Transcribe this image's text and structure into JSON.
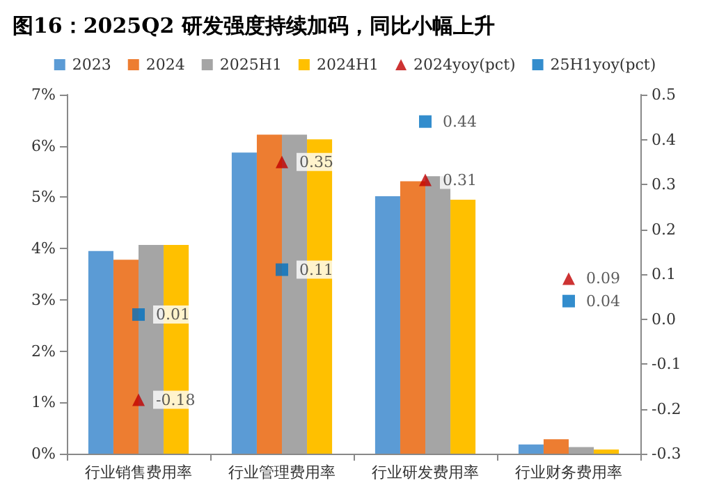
{
  "chart_data": {
    "type": "bar",
    "title": "图16：2025Q2 研发强度持续加码，同比小幅上升",
    "categories": [
      "行业销售费用率",
      "行业管理费用率",
      "行业研发费用率",
      "行业财务费用率"
    ],
    "series": [
      {
        "name": "2023",
        "color": "#5b9bd5",
        "values": [
          3.95,
          5.87,
          5.02,
          0.18
        ]
      },
      {
        "name": "2024",
        "color": "#ed7d31",
        "values": [
          3.78,
          6.22,
          5.31,
          0.28
        ]
      },
      {
        "name": "2025H1",
        "color": "#a5a5a5",
        "values": [
          4.07,
          6.22,
          5.41,
          0.13
        ]
      },
      {
        "name": "2024H1",
        "color": "#ffc000",
        "values": [
          4.07,
          6.13,
          4.95,
          0.08
        ]
      },
      {
        "name": "2024yoy(pct)",
        "type": "scatter",
        "marker": "triangle",
        "axis": "y2",
        "color": "#c00000",
        "values": [
          -0.18,
          0.35,
          0.31,
          0.09
        ],
        "value_labels": [
          "-0.18",
          "0.35",
          "0.31",
          "0.09"
        ]
      },
      {
        "name": "25H1yoy(pct)",
        "type": "scatter",
        "marker": "square",
        "axis": "y2",
        "color": "#0070c0",
        "values": [
          0.01,
          0.11,
          0.44,
          0.04
        ],
        "value_labels": [
          "0.01",
          "0.11",
          "0.44",
          "0.04"
        ]
      }
    ],
    "ylim": [
      0,
      7
    ],
    "yticks": [
      {
        "value": 0,
        "label": "0%"
      },
      {
        "value": 1,
        "label": "1%"
      },
      {
        "value": 2,
        "label": "2%"
      },
      {
        "value": 3,
        "label": "3%"
      },
      {
        "value": 4,
        "label": "4%"
      },
      {
        "value": 5,
        "label": "5%"
      },
      {
        "value": 6,
        "label": "6%"
      },
      {
        "value": 7,
        "label": "7%"
      }
    ],
    "y2lim": [
      -0.3,
      0.5
    ],
    "y2ticks": [
      -0.3,
      -0.2,
      -0.1,
      {
        "value": 0,
        "label": "0.0"
      },
      0.1,
      0.2,
      0.3,
      0.4,
      0.5
    ],
    "legend": "top",
    "grid": false
  }
}
